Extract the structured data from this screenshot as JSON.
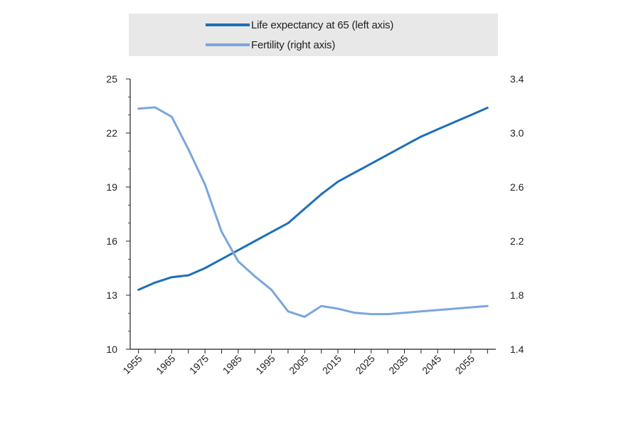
{
  "chart_data": {
    "type": "line",
    "title": "",
    "legend_position": "top",
    "x": [
      1955,
      1960,
      1965,
      1970,
      1975,
      1980,
      1985,
      1990,
      1995,
      2000,
      2005,
      2010,
      2015,
      2020,
      2025,
      2030,
      2035,
      2040,
      2045,
      2050,
      2055,
      2060
    ],
    "x_ticks": [
      "1955",
      "1965",
      "1975",
      "1985",
      "1995",
      "2005",
      "2015",
      "2025",
      "2035",
      "2045",
      "2055"
    ],
    "x_tick_values": [
      1955,
      1965,
      1975,
      1985,
      1995,
      2005,
      2015,
      2025,
      2035,
      2045,
      2055
    ],
    "xlim": [
      1952.5,
      2062.5
    ],
    "left_axis": {
      "ylim": [
        10,
        25
      ],
      "ticks": [
        "10",
        "13",
        "16",
        "19",
        "22",
        "25"
      ],
      "tick_values": [
        10,
        13,
        16,
        19,
        22,
        25
      ]
    },
    "right_axis": {
      "ylim": [
        1.4,
        3.4
      ],
      "ticks": [
        "1.4",
        "1.8",
        "2.2",
        "2.6",
        "3.0",
        "3.4"
      ],
      "tick_values": [
        1.4,
        1.8,
        2.2,
        2.6,
        3.0,
        3.4
      ]
    },
    "series": [
      {
        "name": "Life expectancy at 65 (left axis)",
        "axis": "left",
        "color": "#1f6fb7",
        "values": [
          13.3,
          13.7,
          14.0,
          14.1,
          14.5,
          15.0,
          15.5,
          16.0,
          16.5,
          17.0,
          17.8,
          18.6,
          19.3,
          19.8,
          20.3,
          20.8,
          21.3,
          21.8,
          22.2,
          22.6,
          23.0,
          23.4
        ]
      },
      {
        "name": "Fertility (right axis)",
        "axis": "right",
        "color": "#7aa6dd",
        "values": [
          3.18,
          3.19,
          3.12,
          2.88,
          2.62,
          2.27,
          2.05,
          1.94,
          1.84,
          1.68,
          1.64,
          1.72,
          1.7,
          1.67,
          1.66,
          1.66,
          1.67,
          1.68,
          1.69,
          1.7,
          1.71,
          1.72
        ]
      }
    ]
  }
}
